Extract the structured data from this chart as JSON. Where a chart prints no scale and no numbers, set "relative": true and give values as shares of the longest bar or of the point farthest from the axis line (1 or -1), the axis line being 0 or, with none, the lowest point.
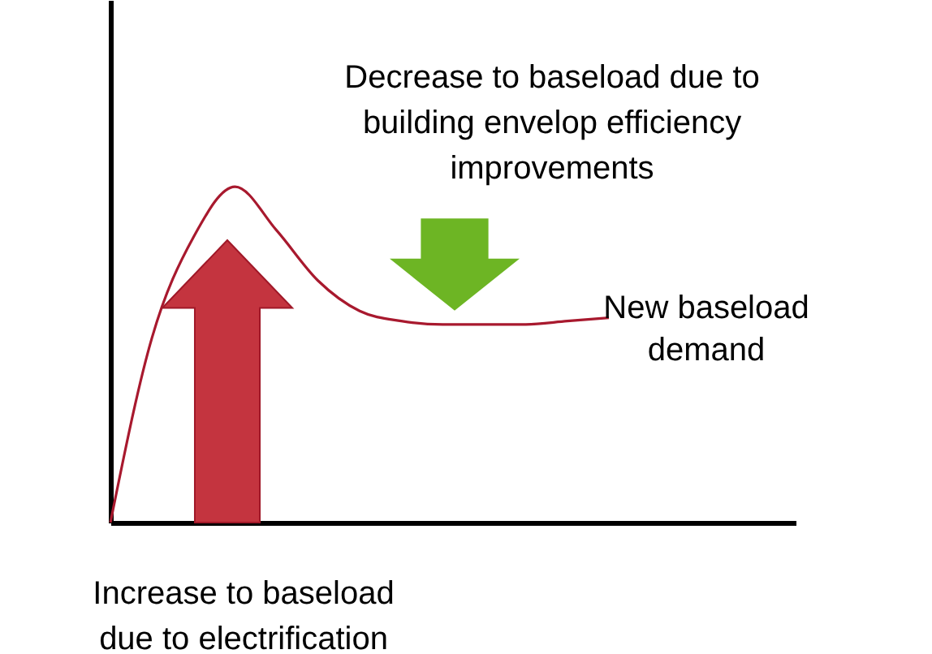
{
  "chart_data": {
    "type": "line",
    "relative": true,
    "categories": [
      null,
      null,
      null,
      null,
      null,
      null,
      null,
      null,
      null,
      null,
      null,
      null,
      null
    ],
    "series": [
      {
        "name": "New baseload demand",
        "color": "#a8192e",
        "values": [
          0,
          0.55,
          0.85,
          1.0,
          0.87,
          0.72,
          0.63,
          0.6,
          0.59,
          0.59,
          0.59,
          0.6,
          0.61
        ]
      }
    ],
    "annotations": [
      "Decrease to baseload due to building envelop efficiency improvements",
      "Increase to baseload due to electrification"
    ]
  }
}
